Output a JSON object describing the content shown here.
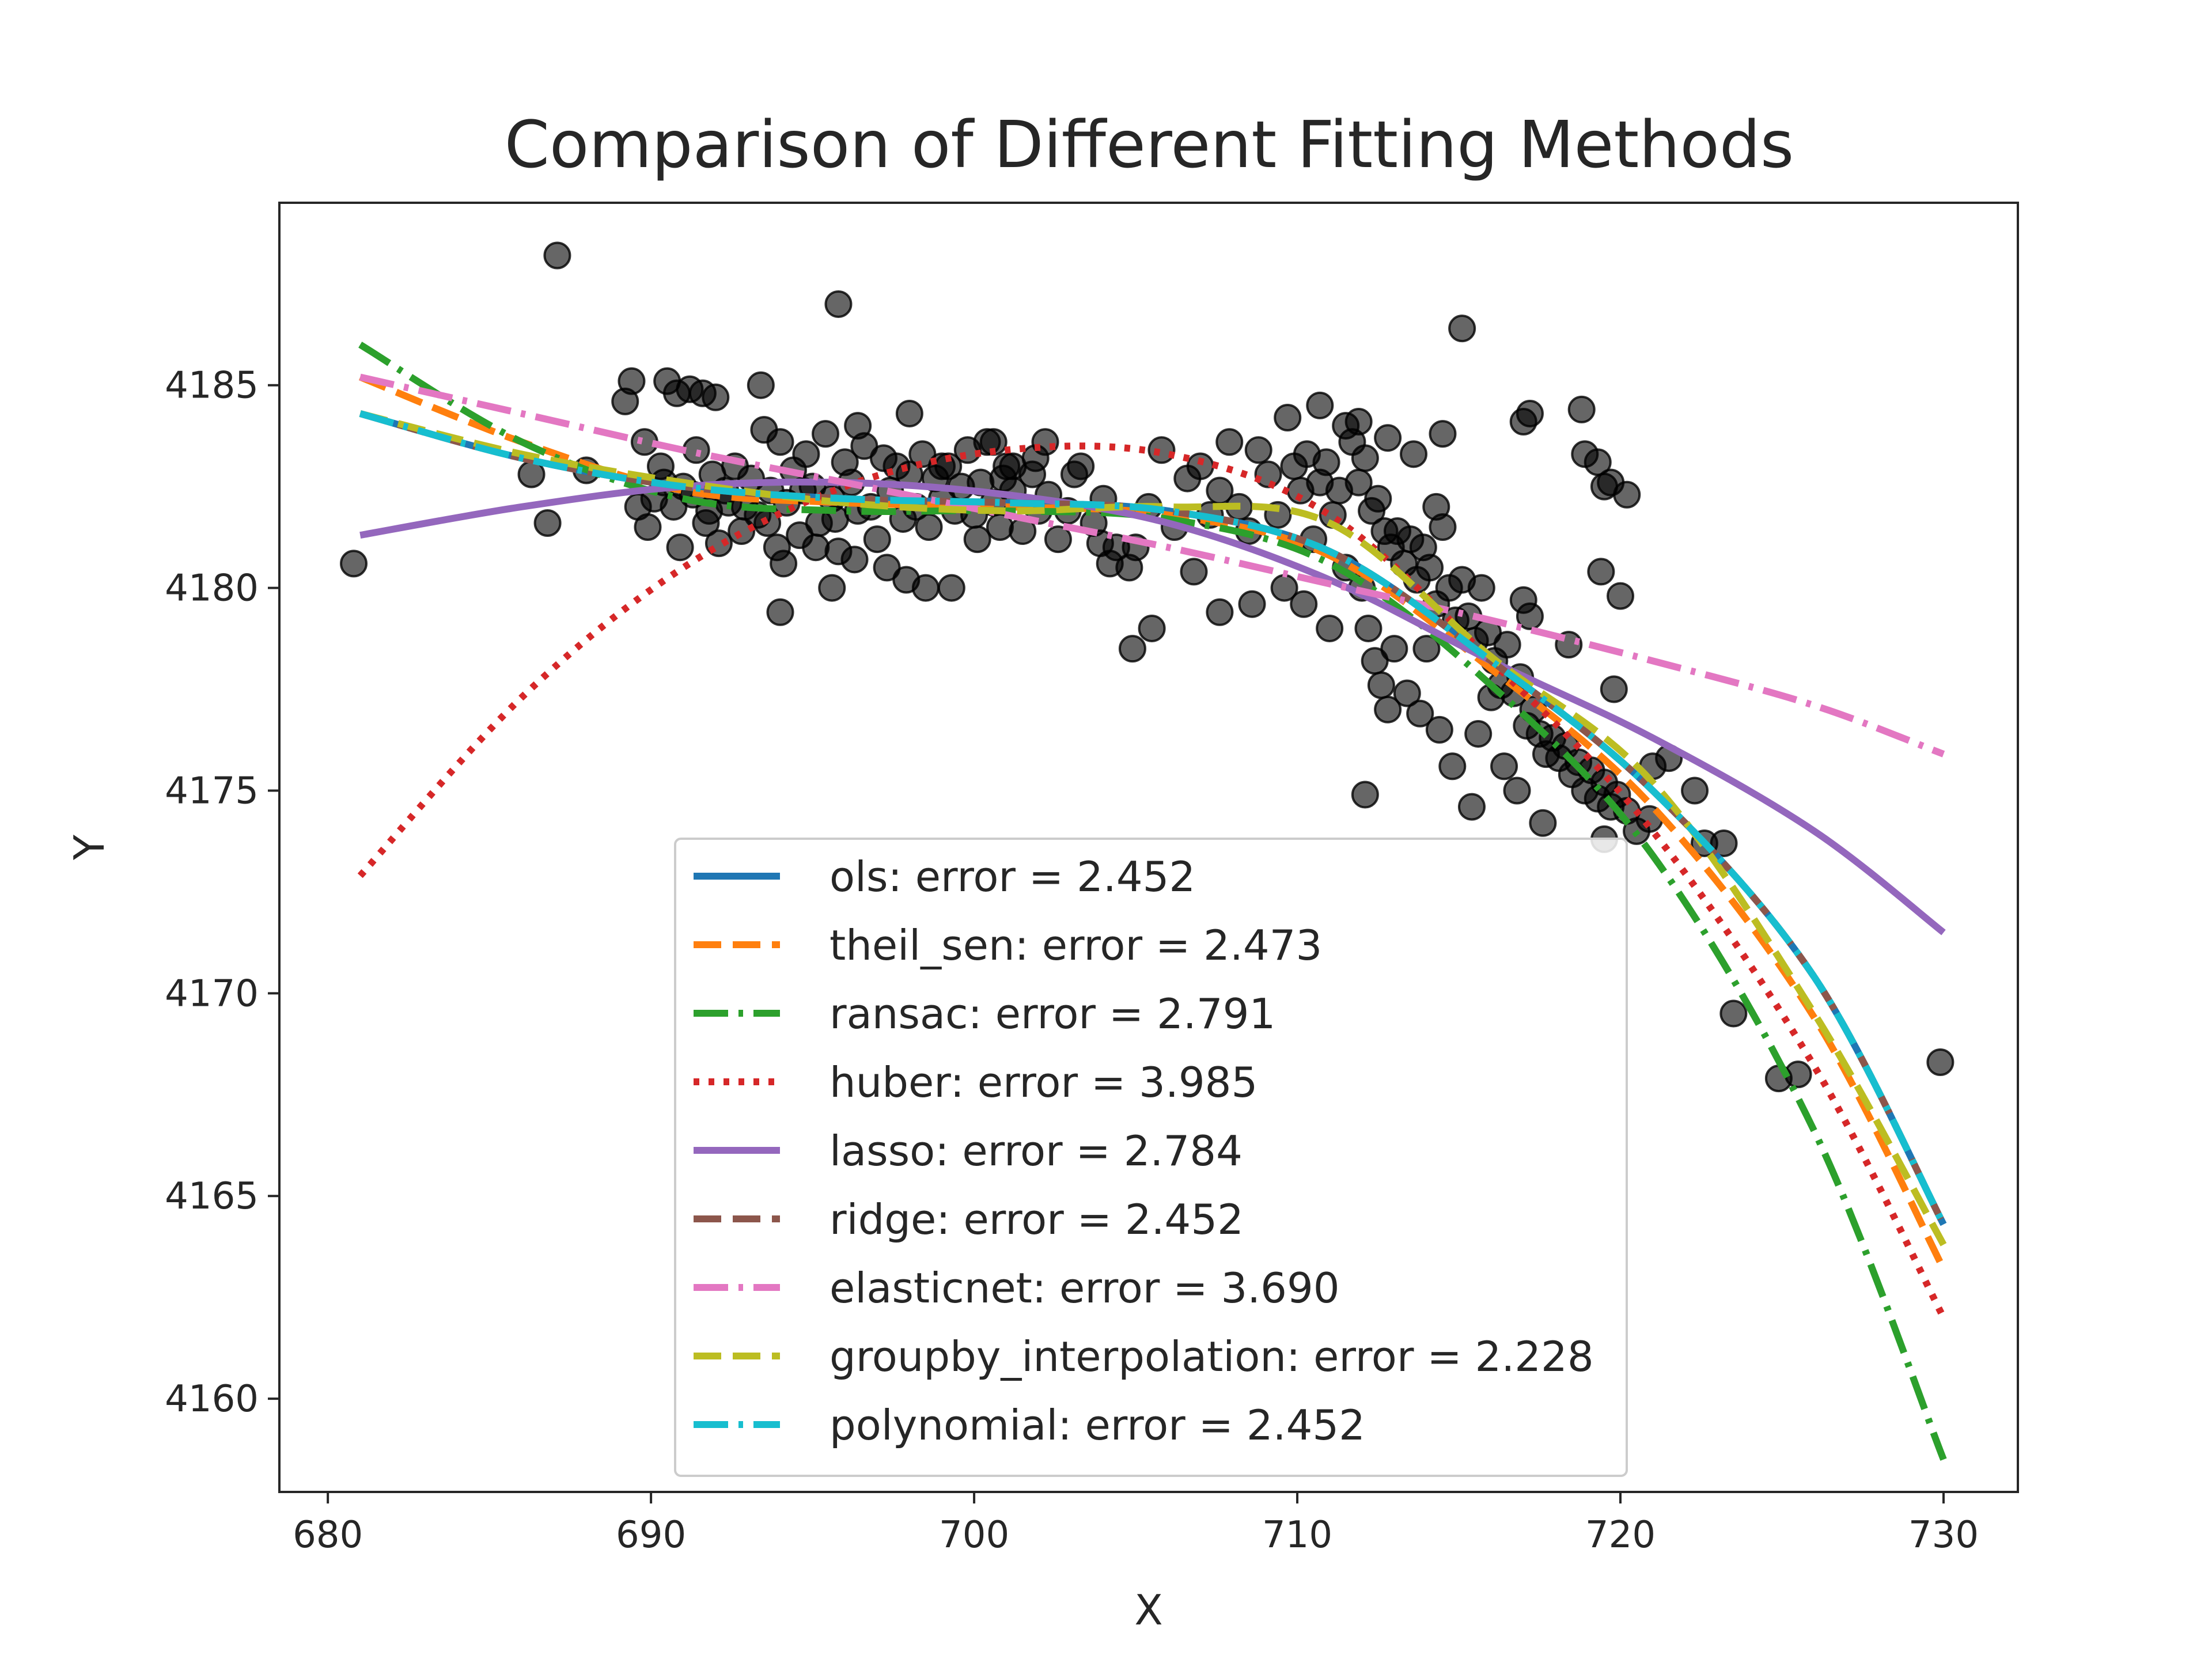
{
  "chart_data": {
    "type": "scatter",
    "title": "Comparison of Different Fitting Methods",
    "xlabel": "X",
    "ylabel": "Y",
    "xlim": [
      678.5,
      732.3
    ],
    "ylim": [
      4157.7,
      4189.5
    ],
    "xticks": [
      680,
      690,
      700,
      710,
      720,
      730
    ],
    "yticks": [
      4160,
      4165,
      4170,
      4175,
      4180,
      4185
    ],
    "grid": false,
    "legend_position": "lower center",
    "scatter": {
      "color": "#000000",
      "alpha": 0.6,
      "points": [
        [
          680.8,
          4180.6
        ],
        [
          687.1,
          4188.2
        ],
        [
          695.8,
          4187.0
        ],
        [
          715.1,
          4186.4
        ],
        [
          686.3,
          4182.8
        ],
        [
          686.8,
          4181.6
        ],
        [
          688.0,
          4182.9
        ],
        [
          689.2,
          4184.6
        ],
        [
          689.4,
          4185.1
        ],
        [
          690.5,
          4185.1
        ],
        [
          690.8,
          4184.8
        ],
        [
          691.2,
          4184.9
        ],
        [
          691.6,
          4184.8
        ],
        [
          692.0,
          4184.7
        ],
        [
          693.4,
          4185.0
        ],
        [
          689.8,
          4183.6
        ],
        [
          689.6,
          4182.0
        ],
        [
          689.9,
          4181.5
        ],
        [
          690.4,
          4182.6
        ],
        [
          690.9,
          4181.0
        ],
        [
          691.3,
          4182.3
        ],
        [
          691.4,
          4183.4
        ],
        [
          691.7,
          4181.6
        ],
        [
          691.9,
          4182.8
        ],
        [
          692.1,
          4181.1
        ],
        [
          692.4,
          4182.1
        ],
        [
          692.6,
          4183.0
        ],
        [
          692.8,
          4181.4
        ],
        [
          693.1,
          4182.7
        ],
        [
          693.3,
          4181.8
        ],
        [
          693.5,
          4183.9
        ],
        [
          693.7,
          4182.4
        ],
        [
          693.9,
          4181.0
        ],
        [
          694.0,
          4183.6
        ],
        [
          694.2,
          4182.1
        ],
        [
          694.4,
          4182.9
        ],
        [
          694.6,
          4181.3
        ],
        [
          694.8,
          4183.3
        ],
        [
          695.0,
          4182.5
        ],
        [
          695.2,
          4181.6
        ],
        [
          695.4,
          4183.8
        ],
        [
          695.6,
          4182.2
        ],
        [
          695.8,
          4180.9
        ],
        [
          696.0,
          4183.1
        ],
        [
          696.2,
          4182.6
        ],
        [
          696.4,
          4181.9
        ],
        [
          696.6,
          4183.5
        ],
        [
          696.8,
          4182.0
        ],
        [
          697.0,
          4181.2
        ],
        [
          697.2,
          4183.2
        ],
        [
          697.4,
          4182.4
        ],
        [
          697.6,
          4183.0
        ],
        [
          697.8,
          4181.7
        ],
        [
          698.0,
          4182.8
        ],
        [
          698.2,
          4182.0
        ],
        [
          698.4,
          4183.3
        ],
        [
          698.6,
          4181.5
        ],
        [
          698.8,
          4182.7
        ],
        [
          699.0,
          4182.2
        ],
        [
          699.2,
          4183.0
        ],
        [
          699.4,
          4181.9
        ],
        [
          699.6,
          4182.5
        ],
        [
          699.8,
          4183.4
        ],
        [
          700.0,
          4181.8
        ],
        [
          700.2,
          4182.6
        ],
        [
          700.4,
          4183.6
        ],
        [
          700.6,
          4182.1
        ],
        [
          700.8,
          4181.5
        ],
        [
          701.0,
          4183.0
        ],
        [
          701.2,
          4182.4
        ],
        [
          701.5,
          4181.4
        ],
        [
          701.8,
          4182.8
        ],
        [
          702.0,
          4181.9
        ],
        [
          702.3,
          4182.3
        ],
        [
          702.6,
          4181.2
        ],
        [
          702.9,
          4181.9
        ],
        [
          703.3,
          4183.0
        ],
        [
          703.7,
          4181.6
        ],
        [
          704.0,
          4182.2
        ],
        [
          704.4,
          4181.0
        ],
        [
          690.1,
          4182.2
        ],
        [
          690.3,
          4183.0
        ],
        [
          690.7,
          4182.0
        ],
        [
          691.0,
          4182.5
        ],
        [
          691.8,
          4181.9
        ],
        [
          692.3,
          4182.4
        ],
        [
          692.9,
          4182.0
        ],
        [
          693.6,
          4181.6
        ],
        [
          694.1,
          4180.6
        ],
        [
          694.7,
          4182.4
        ],
        [
          695.1,
          4181.0
        ],
        [
          695.7,
          4181.7
        ],
        [
          696.3,
          4180.7
        ],
        [
          697.3,
          4180.5
        ],
        [
          697.9,
          4180.2
        ],
        [
          698.5,
          4180.0
        ],
        [
          699.3,
          4180.0
        ],
        [
          700.1,
          4181.2
        ],
        [
          700.9,
          4182.7
        ],
        [
          701.9,
          4183.2
        ],
        [
          702.2,
          4183.6
        ],
        [
          703.1,
          4182.8
        ],
        [
          703.9,
          4181.1
        ],
        [
          704.2,
          4180.6
        ],
        [
          694.0,
          4179.4
        ],
        [
          695.6,
          4180.0
        ],
        [
          696.4,
          4184.0
        ],
        [
          698.0,
          4184.3
        ],
        [
          699.0,
          4183.0
        ],
        [
          700.6,
          4183.6
        ],
        [
          701.2,
          4183.0
        ],
        [
          704.8,
          4180.5
        ],
        [
          704.9,
          4178.5
        ],
        [
          705.5,
          4179.0
        ],
        [
          705.0,
          4181.0
        ],
        [
          705.4,
          4182.0
        ],
        [
          705.8,
          4183.4
        ],
        [
          706.2,
          4181.5
        ],
        [
          706.6,
          4182.7
        ],
        [
          707.0,
          4183.0
        ],
        [
          707.3,
          4181.8
        ],
        [
          707.6,
          4182.4
        ],
        [
          707.9,
          4183.6
        ],
        [
          708.2,
          4182.0
        ],
        [
          708.5,
          4181.4
        ],
        [
          708.8,
          4183.4
        ],
        [
          709.1,
          4182.8
        ],
        [
          709.4,
          4181.8
        ],
        [
          709.7,
          4184.2
        ],
        [
          709.9,
          4183.0
        ],
        [
          710.1,
          4182.4
        ],
        [
          710.3,
          4183.3
        ],
        [
          710.5,
          4181.2
        ],
        [
          710.7,
          4182.6
        ],
        [
          710.9,
          4183.1
        ],
        [
          711.1,
          4181.8
        ],
        [
          711.3,
          4182.4
        ],
        [
          711.5,
          4184.0
        ],
        [
          711.7,
          4183.6
        ],
        [
          711.9,
          4182.6
        ],
        [
          712.1,
          4183.2
        ],
        [
          712.3,
          4181.9
        ],
        [
          712.5,
          4182.2
        ],
        [
          712.7,
          4181.4
        ],
        [
          712.9,
          4181.0
        ],
        [
          713.1,
          4181.4
        ],
        [
          713.3,
          4180.6
        ],
        [
          713.5,
          4181.2
        ],
        [
          713.7,
          4180.2
        ],
        [
          713.9,
          4181.0
        ],
        [
          714.1,
          4180.5
        ],
        [
          714.3,
          4179.6
        ],
        [
          714.5,
          4181.5
        ],
        [
          714.7,
          4180.0
        ],
        [
          714.9,
          4179.2
        ],
        [
          715.1,
          4180.2
        ],
        [
          715.3,
          4179.3
        ],
        [
          715.5,
          4178.7
        ],
        [
          715.7,
          4180.0
        ],
        [
          715.9,
          4178.9
        ],
        [
          716.1,
          4178.2
        ],
        [
          716.3,
          4177.6
        ],
        [
          716.5,
          4178.6
        ],
        [
          716.7,
          4177.4
        ],
        [
          716.9,
          4177.8
        ],
        [
          717.1,
          4176.6
        ],
        [
          717.3,
          4177.0
        ],
        [
          717.5,
          4176.4
        ],
        [
          717.7,
          4175.9
        ],
        [
          717.9,
          4176.3
        ],
        [
          718.1,
          4175.8
        ],
        [
          718.3,
          4176.1
        ],
        [
          718.5,
          4175.4
        ],
        [
          718.7,
          4175.7
        ],
        [
          718.9,
          4175.0
        ],
        [
          719.1,
          4175.5
        ],
        [
          719.3,
          4174.8
        ],
        [
          719.5,
          4175.2
        ],
        [
          719.7,
          4174.6
        ],
        [
          719.9,
          4174.9
        ],
        [
          712.0,
          4180.0
        ],
        [
          712.2,
          4179.0
        ],
        [
          712.4,
          4178.2
        ],
        [
          712.6,
          4177.6
        ],
        [
          712.8,
          4177.0
        ],
        [
          713.0,
          4178.5
        ],
        [
          713.4,
          4177.4
        ],
        [
          713.8,
          4176.9
        ],
        [
          714.0,
          4178.5
        ],
        [
          714.4,
          4176.5
        ],
        [
          714.8,
          4175.6
        ],
        [
          715.4,
          4174.6
        ],
        [
          715.6,
          4176.4
        ],
        [
          716.0,
          4177.3
        ],
        [
          716.4,
          4175.6
        ],
        [
          716.8,
          4175.0
        ],
        [
          717.6,
          4174.2
        ],
        [
          712.1,
          4174.9
        ],
        [
          711.5,
          4180.5
        ],
        [
          711.0,
          4179.0
        ],
        [
          710.2,
          4179.6
        ],
        [
          709.6,
          4180.0
        ],
        [
          708.6,
          4179.6
        ],
        [
          707.6,
          4179.4
        ],
        [
          706.8,
          4180.4
        ],
        [
          717.0,
          4179.7
        ],
        [
          717.2,
          4179.3
        ],
        [
          718.4,
          4178.6
        ],
        [
          719.8,
          4177.5
        ],
        [
          721.0,
          4175.6
        ],
        [
          721.5,
          4175.8
        ],
        [
          722.3,
          4175.0
        ],
        [
          722.6,
          4173.7
        ],
        [
          723.2,
          4173.7
        ],
        [
          720.9,
          4174.3
        ],
        [
          720.5,
          4174.0
        ],
        [
          720.2,
          4174.5
        ],
        [
          719.5,
          4173.8
        ],
        [
          717.0,
          4184.1
        ],
        [
          717.2,
          4184.3
        ],
        [
          718.8,
          4184.4
        ],
        [
          718.9,
          4183.3
        ],
        [
          719.3,
          4183.1
        ],
        [
          719.5,
          4182.5
        ],
        [
          720.2,
          4182.3
        ],
        [
          719.7,
          4182.6
        ],
        [
          719.4,
          4180.4
        ],
        [
          720.0,
          4179.8
        ],
        [
          714.5,
          4183.8
        ],
        [
          714.3,
          4182.0
        ],
        [
          723.5,
          4169.5
        ],
        [
          724.9,
          4167.9
        ],
        [
          725.5,
          4168.0
        ],
        [
          729.9,
          4168.3
        ],
        [
          713.6,
          4183.3
        ],
        [
          712.8,
          4183.7
        ],
        [
          711.9,
          4184.1
        ],
        [
          710.7,
          4184.5
        ]
      ]
    },
    "x_grid": [
      681,
      686,
      691,
      696,
      701,
      706,
      711,
      716,
      721,
      726,
      730
    ],
    "series": [
      {
        "name": "ols: error = 2.452",
        "color": "#1f77b4",
        "dash": "",
        "width": 12,
        "y": [
          4184.3,
          4183.2,
          4182.5,
          4182.2,
          4182.1,
          4181.9,
          4180.9,
          4178.2,
          4175.0,
          4170.4,
          4164.3
        ]
      },
      {
        "name": "theil_sen: error = 2.473",
        "color": "#ff7f0e",
        "dash": "48 20",
        "width": 12,
        "y": [
          4185.2,
          4183.6,
          4182.4,
          4182.1,
          4182.0,
          4181.8,
          4180.8,
          4178.0,
          4174.6,
          4169.4,
          4163.2
        ]
      },
      {
        "name": "ransac: error = 2.791",
        "color": "#2ca02c",
        "dash": "60 18 8 18",
        "width": 12,
        "y": [
          4186.0,
          4183.6,
          4182.2,
          4181.9,
          4181.9,
          4181.7,
          4180.6,
          4177.6,
          4173.4,
          4166.6,
          4158.5
        ]
      },
      {
        "name": "huber: error = 3.985",
        "color": "#d62728",
        "dash": "10 16",
        "width": 12,
        "y": [
          4172.9,
          4177.3,
          4180.5,
          4182.5,
          4183.4,
          4183.3,
          4181.8,
          4178.2,
          4174.0,
          4168.2,
          4162.0
        ]
      },
      {
        "name": "lasso: error = 2.784",
        "color": "#9467bd",
        "dash": "",
        "width": 12,
        "y": [
          4181.3,
          4182.0,
          4182.5,
          4182.6,
          4182.3,
          4181.6,
          4180.2,
          4178.2,
          4176.3,
          4174.0,
          4171.5
        ]
      },
      {
        "name": "ridge: error = 2.452",
        "color": "#8c564b",
        "dash": "48 20",
        "width": 12,
        "y": [
          4184.3,
          4183.2,
          4182.5,
          4182.2,
          4182.1,
          4181.9,
          4180.9,
          4178.2,
          4175.0,
          4170.4,
          4164.3
        ]
      },
      {
        "name": "elasticnet: error = 3.690",
        "color": "#e377c2",
        "dash": "60 18 8 18",
        "width": 12,
        "y": [
          4185.2,
          4184.3,
          4183.4,
          4182.6,
          4181.8,
          4181.0,
          4180.1,
          4179.2,
          4178.2,
          4177.1,
          4175.9
        ]
      },
      {
        "name": "groupby_interpolation: error = 2.228",
        "color": "#bcbd22",
        "dash": "48 20",
        "width": 12,
        "y": [
          4184.3,
          4183.3,
          4182.6,
          4182.1,
          4181.9,
          4182.0,
          4181.6,
          4178.3,
          4175.2,
          4169.5,
          4163.8
        ]
      },
      {
        "name": "polynomial: error = 2.452",
        "color": "#17becf",
        "dash": "60 18 8 18",
        "width": 12,
        "y": [
          4184.3,
          4183.2,
          4182.5,
          4182.2,
          4182.1,
          4181.9,
          4180.9,
          4178.2,
          4175.0,
          4170.4,
          4164.3
        ]
      }
    ]
  }
}
